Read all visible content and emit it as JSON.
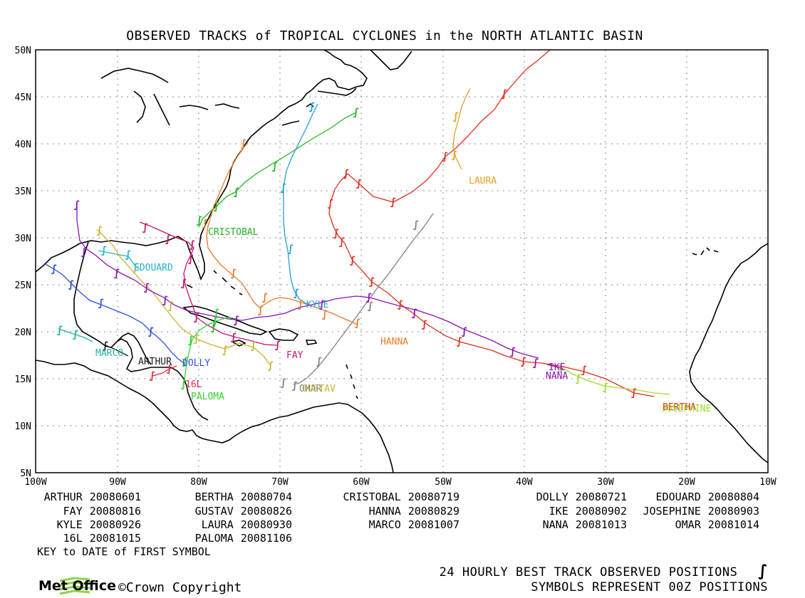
{
  "title": "OBSERVED TRACKS of TROPICAL CYCLONES in the NORTH ATLANTIC BASIN",
  "axes": {
    "lat_labels": [
      "50N",
      "45N",
      "40N",
      "35N",
      "30N",
      "25N",
      "20N",
      "15N",
      "10N",
      "5N"
    ],
    "lon_labels": [
      "100W",
      "90W",
      "80W",
      "70W",
      "60W",
      "50W",
      "40W",
      "30W",
      "20W",
      "10W"
    ]
  },
  "storms": [
    {
      "name": "ARTHUR",
      "date": "20080601",
      "color": "#1a1a1a"
    },
    {
      "name": "BERTHA",
      "date": "20080704",
      "color": "#e0301e"
    },
    {
      "name": "CRISTOBAL",
      "date": "20080719",
      "color": "#23b423"
    },
    {
      "name": "DOLLY",
      "date": "20080721",
      "color": "#3050e0"
    },
    {
      "name": "EDOUARD",
      "date": "20080804",
      "color": "#20b4c8"
    },
    {
      "name": "FAY",
      "date": "20080816",
      "color": "#c8146e"
    },
    {
      "name": "GUSTAV",
      "date": "20080826",
      "color": "#c8b432"
    },
    {
      "name": "HANNA",
      "date": "20080829",
      "color": "#e87a28"
    },
    {
      "name": "IKE",
      "date": "20080902",
      "color": "#8c14b4"
    },
    {
      "name": "JOSEPHINE",
      "date": "20080903",
      "color": "#a0dc28"
    },
    {
      "name": "KYLE",
      "date": "20080926",
      "color": "#1ea0d2"
    },
    {
      "name": "LAURA",
      "date": "20080930",
      "color": "#e6a028"
    },
    {
      "name": "MARCO",
      "date": "20081007",
      "color": "#20b4a0"
    },
    {
      "name": "NANA",
      "date": "20081013",
      "color": "#8c14b4"
    },
    {
      "name": "OMAR",
      "date": "20081014",
      "color": "#808080"
    },
    {
      "name": "16L",
      "date": "20081015",
      "color": "#e02848"
    },
    {
      "name": "PALOMA",
      "date": "20081106",
      "color": "#32d232"
    }
  ],
  "key_text": "KEY to DATE of FIRST SYMBOL",
  "footer": {
    "line1": "24 HOURLY BEST TRACK OBSERVED POSITIONS",
    "line2": "SYMBOLS REPRESENT 00Z POSITIONS",
    "logo_text": "Met Office",
    "copyright": "©Crown Copyright"
  },
  "map_labels": {
    "arthur": "ARTHUR",
    "dolly": "DOLLY",
    "marco": "MARCO",
    "edouard": "EDOUARD",
    "cristobal": "CRISTOBAL",
    "fay": "FAY",
    "hanna": "HANNA",
    "kyle": "KYLE",
    "laura": "LAURA",
    "ike": "IKE",
    "nana": "NANA",
    "bertha": "BERTHA",
    "josephine": "JOSEPHINE",
    "omar": "OMAR",
    "gustav": "GUSTAV",
    "l16": "16L",
    "paloma": "PALOMA"
  },
  "colors": {
    "arthur": "#1a1a1a",
    "bertha": "#e0301e",
    "cristobal": "#23b423",
    "dolly": "#3050e0",
    "edouard": "#20b4c8",
    "fay": "#c8146e",
    "gustav": "#c8b432",
    "hanna": "#e87a28",
    "ike": "#8c14b4",
    "josephine": "#a0dc28",
    "kyle": "#1ea0d2",
    "laura": "#e6a028",
    "marco": "#20b4a0",
    "nana": "#8c14b4",
    "omar": "#808080",
    "l16": "#e02848",
    "paloma": "#32d232"
  }
}
